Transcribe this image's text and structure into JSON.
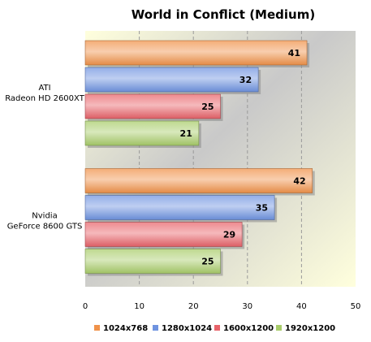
{
  "chart_data": {
    "type": "bar",
    "orientation": "horizontal",
    "title": "World in Conflict (Medium)",
    "categories": [
      [
        "ATI",
        "Radeon HD 2600XT"
      ],
      [
        "Nvidia",
        "GeForce 8600 GTS"
      ]
    ],
    "series": [
      {
        "name": "1024x768",
        "color": "#f0924a",
        "values": [
          41,
          42
        ]
      },
      {
        "name": "1280x1024",
        "color": "#6f93e0",
        "values": [
          32,
          35
        ]
      },
      {
        "name": "1600x1200",
        "color": "#e8636a",
        "values": [
          25,
          29
        ]
      },
      {
        "name": "1920x1200",
        "color": "#a8cc6a",
        "values": [
          21,
          25
        ]
      }
    ],
    "xlim": [
      0,
      50
    ],
    "xticks": [
      0,
      10,
      20,
      30,
      40,
      50
    ],
    "grid": true,
    "legend_position": "bottom"
  }
}
